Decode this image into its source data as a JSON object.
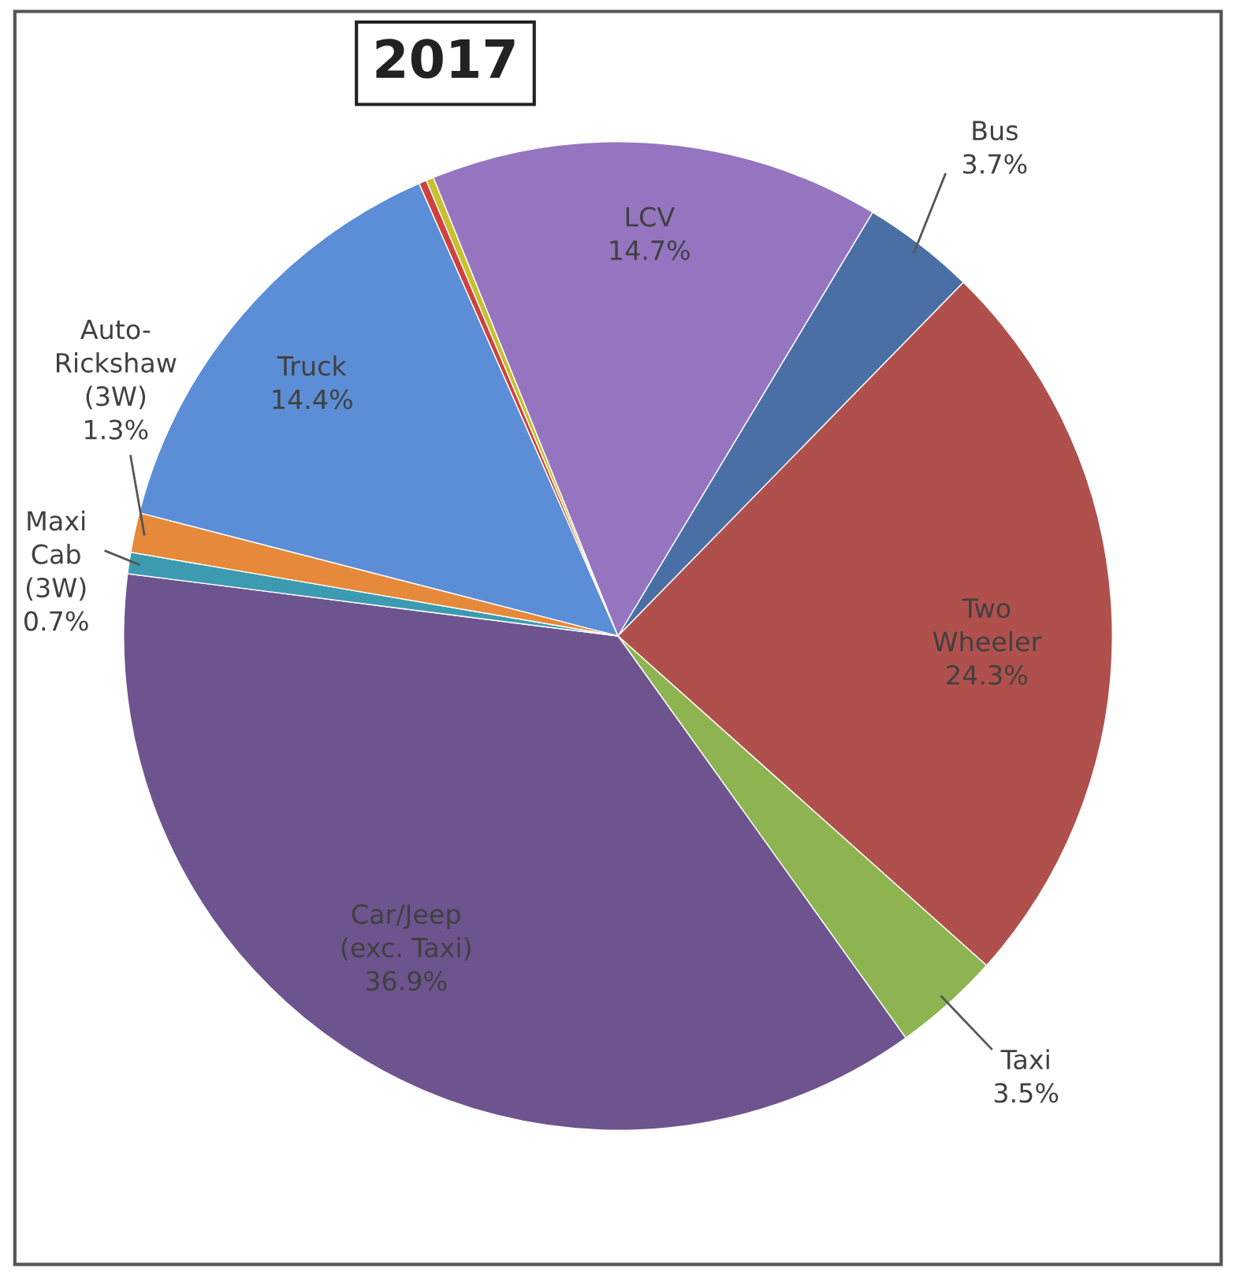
{
  "chart_data": {
    "type": "pie",
    "title": "2017",
    "categories": [
      "Bus",
      "Two\nWheeler",
      "Taxi",
      "Car/Jeep\n(exc. Taxi)",
      "Maxi\nCab\n(3W)",
      "Auto-\nRickshaw\n(3W)",
      "Truck",
      null,
      null,
      "LCV"
    ],
    "values": [
      3.7,
      24.3,
      3.5,
      36.9,
      0.7,
      1.3,
      14.4,
      0.25,
      0.25,
      14.7
    ],
    "value_labels": [
      "3.7%",
      "24.3%",
      "3.5%",
      "36.9%",
      "0.7%",
      "1.3%",
      "14.4%",
      null,
      null,
      "14.7%"
    ],
    "colors": [
      "#4a6fa5",
      "#b0504d",
      "#8db451",
      "#6e548e",
      "#3c9bb0",
      "#e6893a",
      "#5b8ed6",
      "#d0413c",
      "#c8c030",
      "#9575c0"
    ]
  }
}
